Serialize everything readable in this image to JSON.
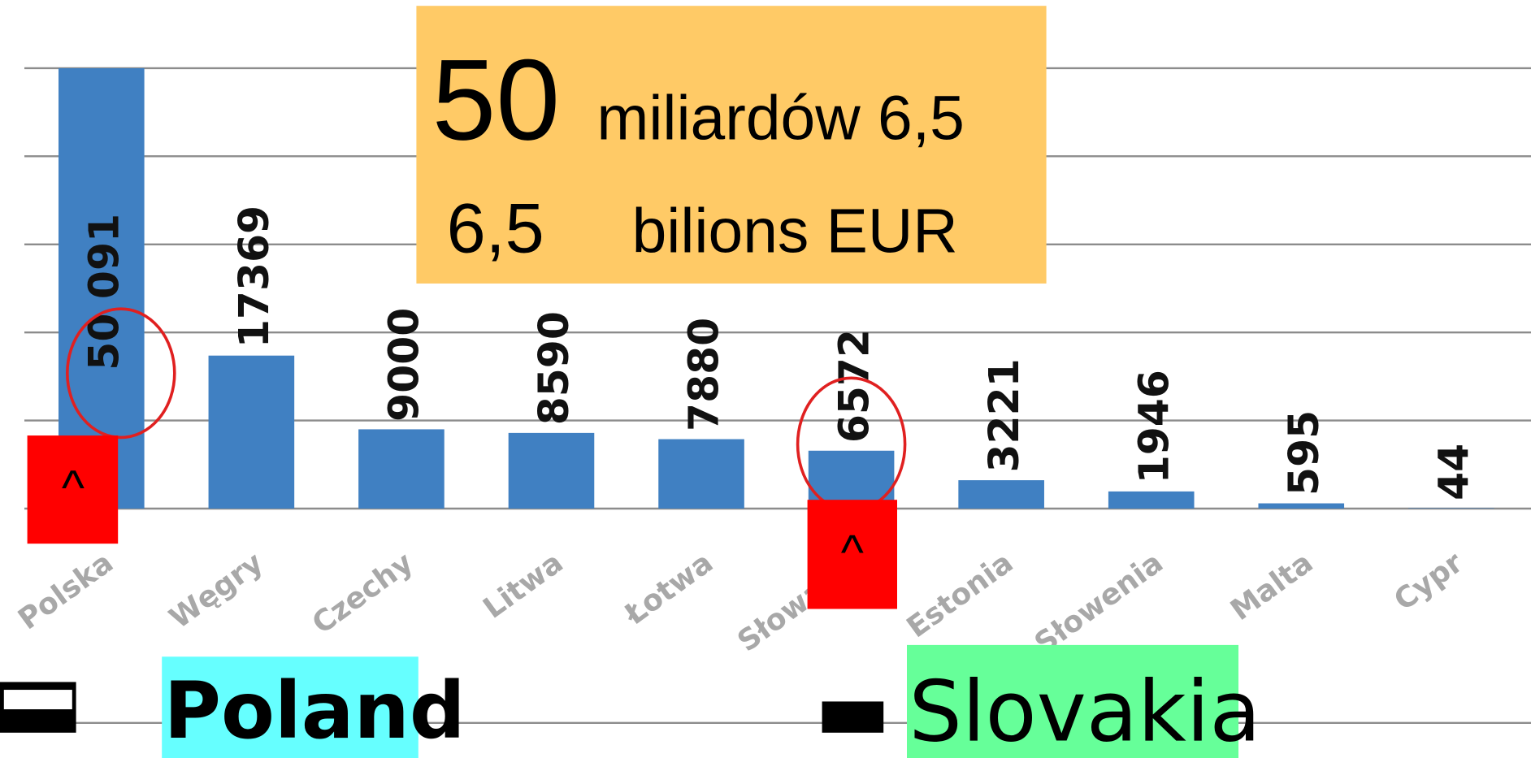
{
  "chart_data": {
    "type": "bar",
    "categories": [
      "Polska",
      "Węgry",
      "Czechy",
      "Litwa",
      "Łotwa",
      "Słowacja",
      "Estonia",
      "Słowenia",
      "Malta",
      "Cypr"
    ],
    "values": [
      50091,
      17369,
      9000,
      8590,
      7880,
      6572,
      3221,
      1946,
      595,
      44
    ],
    "value_labels": [
      "50 091",
      "17369",
      "9000",
      "8590",
      "7880",
      "6572",
      "3221",
      "1946",
      "595",
      "44"
    ],
    "color": "#4080c2",
    "ylim": [
      0,
      50000
    ],
    "yticks": [
      0,
      10000,
      20000,
      30000,
      40000,
      50000
    ],
    "grid": true,
    "annotations": [
      "50",
      "miliardów 6,5",
      "6,5",
      "bilions EUR",
      "^",
      "^",
      "Poland",
      "Slovakia"
    ]
  }
}
